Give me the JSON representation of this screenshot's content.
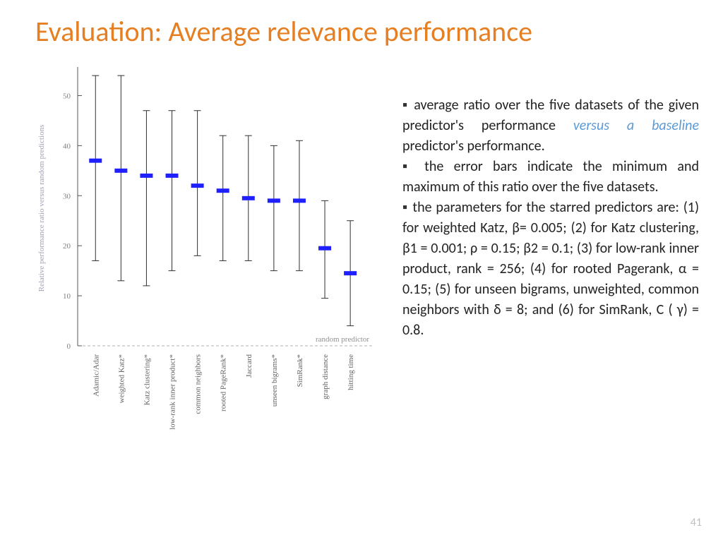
{
  "title": "Evaluation: Average relevance performance",
  "page_number": "41",
  "chart": {
    "type": "errorbar",
    "ylabel": "Relative performance ratio versus random predictions",
    "ylabel_color": "#a0a0c0",
    "ylabel_fontsize": 11,
    "yticks": [
      0,
      10,
      20,
      30,
      40,
      50
    ],
    "ylim": [
      0,
      55
    ],
    "tick_fontsize": 11,
    "tick_color": "#808080",
    "axis_color": "#555555",
    "marker_color": "#2020ff",
    "errorbar_color": "#303030",
    "baseline_dash_color": "#b0b0b0",
    "baseline_label": "random predictor",
    "baseline_label_color": "#909090",
    "categories": [
      "Adamic/Adar",
      "weighted Katz*",
      "Katz clustering*",
      "low-rank inner product*",
      "common neighbors",
      "rooted PageRank*",
      "Jaccard",
      "unseen bigrams*",
      "SimRank*",
      "graph distance",
      "hitting time"
    ],
    "means": [
      37,
      35,
      34,
      34,
      32,
      31,
      29.5,
      29,
      29,
      19.5,
      14.5
    ],
    "mins": [
      17,
      13,
      12,
      15,
      18,
      17,
      17,
      15,
      15,
      9.5,
      4
    ],
    "maxs": [
      54,
      54,
      47,
      47,
      47,
      42,
      42,
      40,
      41,
      29,
      25
    ]
  },
  "text": {
    "b1_pre": "average ratio over the five datasets of the given predictor's performance ",
    "b1_em": "versus a baseline",
    "b1_post": " predictor's performance.",
    "b2": "the error bars indicate the minimum and maximum of this ratio over the five datasets.",
    "b3": "the parameters for the starred predictors are: (1) for weighted Katz, β= 0.005; (2) for Katz clustering, β1 = 0.001;  ρ = 0.15; β2 = 0.1; (3) for low-rank inner product, rank = 256; (4) for rooted Pagerank, α  = 0.15; (5) for unseen bigrams, unweighted, common neighbors with δ = 8; and (6) for SimRank, C ( γ) = 0.8."
  }
}
